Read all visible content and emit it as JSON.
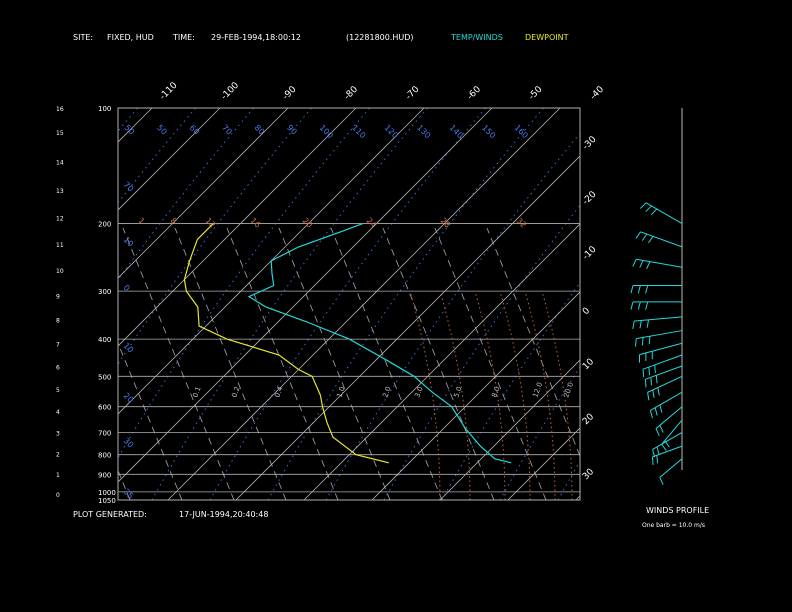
{
  "header": {
    "site_label": "SITE:",
    "site_value": "FIXED, HUD",
    "time_label": "TIME:",
    "time_value": "29-FEB-1994,18:00:12",
    "file_id": "(12281800.HUD)",
    "legend_temp": "TEMP/WINDS",
    "legend_dew": "DEWPOINT"
  },
  "footer": {
    "generated_label": "PLOT GENERATED:",
    "generated_value": "17-JUN-1994,20:40:48"
  },
  "winds": {
    "title": "WINDS PROFILE",
    "note": "One barb = 10.0 m/s"
  },
  "colors": {
    "temp": "#22d8d8",
    "dew": "#e6e62a",
    "isobar": "#b0b0b0",
    "isotherm": "#b0b0b0",
    "dry_adiabat": "#3a6ad8",
    "moist_adiabat": "#9a9a9a",
    "mixing_ratio": "#c8643c",
    "label_blue": "#4a7ae8",
    "label_orange": "#d07040"
  },
  "chart_data": {
    "type": "line",
    "chart_kind": "skew-t log-p sounding",
    "ylabel": "",
    "xlabel": "",
    "y_scale": "log",
    "pressure_axis": {
      "range": [
        1050,
        100
      ],
      "tick_labels": [
        "100",
        "200",
        "300",
        "400",
        "500",
        "600",
        "700",
        "800",
        "900",
        "1000",
        "1050"
      ]
    },
    "height_axis": {
      "unit": "km",
      "tick_labels": [
        "0",
        "1",
        "2",
        "3",
        "4",
        "5",
        "6",
        "7",
        "8",
        "9",
        "10",
        "11",
        "12",
        "13",
        "14",
        "15",
        "16"
      ]
    },
    "isotherm_labels_top": [
      "-110",
      "-100",
      "-90",
      "-80",
      "-70",
      "-60",
      "-50",
      "-40"
    ],
    "isotherm_labels_right": [
      "-30",
      "-20",
      "-10",
      "0",
      "10",
      "20",
      "30"
    ],
    "dry_adiabat_labels": [
      "50",
      "50",
      "60",
      "70",
      "80",
      "90",
      "100",
      "110",
      "120",
      "130",
      "140",
      "150",
      "160"
    ],
    "dry_adiabat_labels_left": [
      "70",
      "10",
      "0",
      "10",
      "20",
      "30",
      "35"
    ],
    "mixing_ratio_labels": [
      "1",
      "8",
      "12",
      "16",
      "20",
      "24",
      "28",
      "32"
    ],
    "moist_labels": [
      "0.1",
      "0.2",
      "0.4",
      "1.0",
      "2.0",
      "3.0",
      "5.0",
      "8.0",
      "12.0",
      "20.0"
    ],
    "series": [
      {
        "name": "TEMP/WINDS",
        "x": [
          -52,
          -54,
          -58,
          -60,
          -58,
          -56,
          -58,
          -54,
          -46,
          -37,
          -29,
          -22,
          -17,
          -12,
          -7,
          -2,
          2,
          5
        ],
        "y": [
          200,
          210,
          230,
          250,
          270,
          290,
          310,
          330,
          360,
          400,
          450,
          500,
          550,
          600,
          680,
          760,
          820,
          840
        ]
      },
      {
        "name": "DEWPOINT",
        "x": [
          -74,
          -74,
          -72,
          -70,
          -68,
          -64,
          -61,
          -55,
          -45,
          -40,
          -37,
          -33,
          -31,
          -28,
          -25,
          -19,
          -13
        ],
        "y": [
          200,
          220,
          250,
          280,
          300,
          330,
          370,
          400,
          440,
          480,
          500,
          560,
          600,
          660,
          720,
          800,
          840
        ]
      }
    ],
    "winds_profile": {
      "note": "One barb = 10.0 m/s",
      "barbs": [
        {
          "p": 200,
          "dir": 300,
          "speed": 35
        },
        {
          "p": 230,
          "dir": 290,
          "speed": 40
        },
        {
          "p": 260,
          "dir": 280,
          "speed": 45
        },
        {
          "p": 290,
          "dir": 270,
          "speed": 50
        },
        {
          "p": 320,
          "dir": 270,
          "speed": 50
        },
        {
          "p": 350,
          "dir": 265,
          "speed": 48
        },
        {
          "p": 380,
          "dir": 260,
          "speed": 45
        },
        {
          "p": 410,
          "dir": 255,
          "speed": 40
        },
        {
          "p": 440,
          "dir": 250,
          "speed": 35
        },
        {
          "p": 470,
          "dir": 250,
          "speed": 30
        },
        {
          "p": 500,
          "dir": 245,
          "speed": 28
        },
        {
          "p": 550,
          "dir": 240,
          "speed": 25
        },
        {
          "p": 600,
          "dir": 230,
          "speed": 20
        },
        {
          "p": 650,
          "dir": 220,
          "speed": 15
        },
        {
          "p": 700,
          "dir": 240,
          "speed": 20
        },
        {
          "p": 760,
          "dir": 250,
          "speed": 15
        },
        {
          "p": 820,
          "dir": 230,
          "speed": 10
        }
      ]
    }
  }
}
